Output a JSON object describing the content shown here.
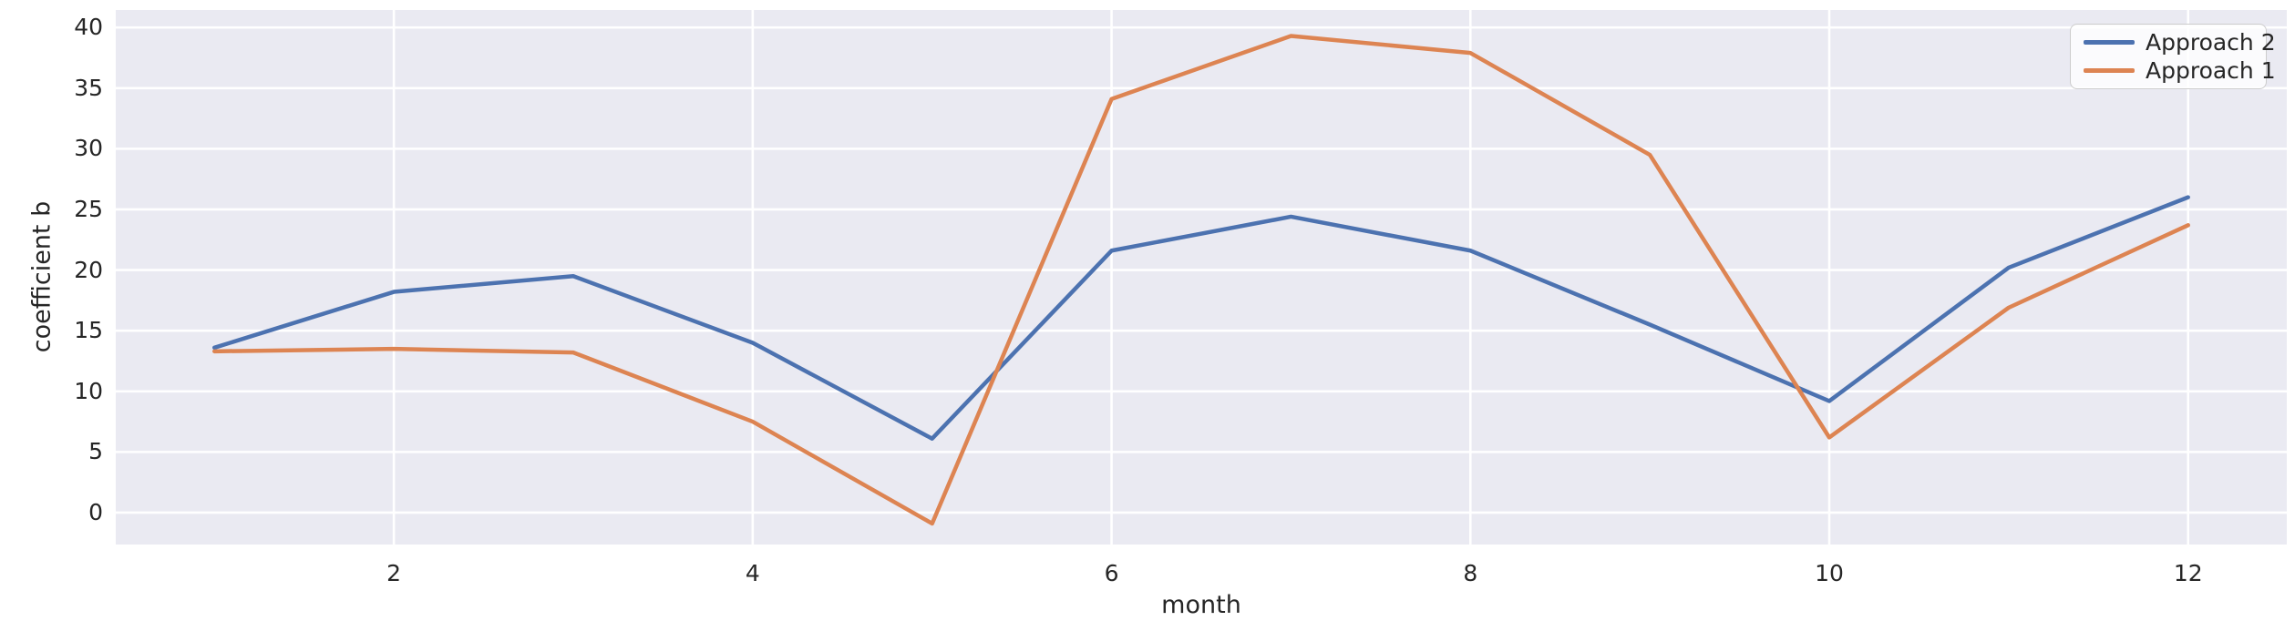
{
  "chart_data": {
    "type": "line",
    "x": [
      1,
      2,
      3,
      4,
      5,
      6,
      7,
      8,
      9,
      10,
      11,
      12
    ],
    "series": [
      {
        "name": "Approach 2",
        "color": "#4c72b0",
        "values": [
          13.6,
          18.2,
          19.5,
          14.0,
          6.1,
          21.6,
          24.4,
          21.6,
          15.5,
          9.2,
          20.2,
          26.0
        ]
      },
      {
        "name": "Approach 1",
        "color": "#dd8452",
        "values": [
          13.3,
          13.5,
          13.2,
          7.5,
          -0.9,
          34.1,
          39.3,
          37.9,
          29.5,
          6.2,
          16.9,
          23.7
        ]
      }
    ],
    "title": "",
    "xlabel": "month",
    "ylabel": "coefficient b",
    "xticks": [
      2,
      4,
      6,
      8,
      10,
      12
    ],
    "yticks": [
      0,
      5,
      10,
      15,
      20,
      25,
      30,
      35,
      40
    ],
    "xlim": [
      0.45,
      12.55
    ],
    "ylim": [
      -2.63,
      41.44
    ],
    "grid": true,
    "legend_position": "upper right",
    "colors": {
      "plot_background": "#eaeaf2",
      "grid_line": "#ffffff",
      "text": "#262626",
      "legend_border": "#cccccc"
    }
  }
}
